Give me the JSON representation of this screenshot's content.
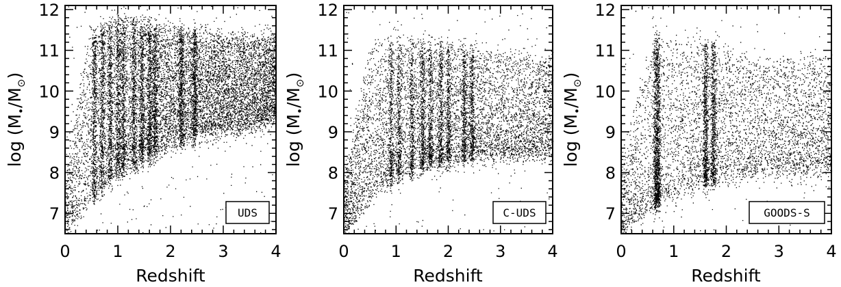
{
  "colors": {
    "points": "#000000",
    "background": "#ffffff",
    "axes": "#000000"
  },
  "chart_data": [
    {
      "type": "scatter",
      "legend": "UDS",
      "legend_placement": "bottom-right",
      "xlabel": "Redshift",
      "ylabel_prefix": "log (M",
      "ylabel_sub_1": "•",
      "ylabel_mid": "/M",
      "ylabel_sub_2": "⊙",
      "ylabel_suffix": ")",
      "xlim": [
        0,
        4
      ],
      "ylim": [
        6.5,
        12.1
      ],
      "xticks": [
        "0",
        "1",
        "2",
        "3",
        "4"
      ],
      "yticks": [
        "7",
        "8",
        "9",
        "10",
        "11",
        "12"
      ],
      "grid": false,
      "density": "very high",
      "point_count_estimate": 14000,
      "lower_envelope": [
        [
          0,
          6.5
        ],
        [
          0.4,
          7.2
        ],
        [
          0.8,
          7.8
        ],
        [
          1.2,
          8.1
        ],
        [
          1.6,
          8.4
        ],
        [
          2.0,
          8.7
        ],
        [
          2.5,
          8.9
        ],
        [
          3.0,
          9.0
        ],
        [
          4.0,
          9.3
        ]
      ],
      "upper_envelope": [
        [
          0,
          7.8
        ],
        [
          0.4,
          11.3
        ],
        [
          1.0,
          11.8
        ],
        [
          2.0,
          11.5
        ],
        [
          3.0,
          11.4
        ],
        [
          4.0,
          11.2
        ]
      ],
      "dense_stripes_z": [
        0.55,
        0.7,
        0.85,
        1.0,
        1.1,
        1.3,
        1.45,
        1.6,
        1.7,
        2.2,
        2.45
      ]
    },
    {
      "type": "scatter",
      "legend": "C-UDS",
      "legend_placement": "bottom-right",
      "xlabel": "Redshift",
      "ylabel_prefix": "log (M",
      "ylabel_sub_1": "•",
      "ylabel_mid": "/M",
      "ylabel_sub_2": "⊙",
      "ylabel_suffix": ")",
      "xlim": [
        0,
        4
      ],
      "ylim": [
        6.5,
        12.1
      ],
      "xticks": [
        "0",
        "1",
        "2",
        "3",
        "4"
      ],
      "yticks": [
        "7",
        "8",
        "9",
        "10",
        "11",
        "12"
      ],
      "grid": false,
      "density": "high",
      "point_count_estimate": 9000,
      "lower_envelope": [
        [
          0,
          6.5
        ],
        [
          0.4,
          7.3
        ],
        [
          0.8,
          7.8
        ],
        [
          1.2,
          8.0
        ],
        [
          1.6,
          8.2
        ],
        [
          2.0,
          8.3
        ],
        [
          2.5,
          8.4
        ],
        [
          3.0,
          8.4
        ],
        [
          4.0,
          8.5
        ]
      ],
      "upper_envelope": [
        [
          0,
          7.8
        ],
        [
          0.5,
          11.2
        ],
        [
          1.0,
          11.2
        ],
        [
          2.0,
          11.1
        ],
        [
          3.0,
          10.9
        ],
        [
          4.0,
          10.8
        ]
      ],
      "dense_stripes_z": [
        0.9,
        1.05,
        1.3,
        1.5,
        1.65,
        1.85,
        2.0,
        2.3,
        2.45
      ]
    },
    {
      "type": "scatter",
      "legend": "GOODS-S",
      "legend_placement": "bottom-right",
      "xlabel": "Redshift",
      "ylabel_prefix": "log (M",
      "ylabel_sub_1": "•",
      "ylabel_mid": "/M",
      "ylabel_sub_2": "⊙",
      "ylabel_suffix": ")",
      "xlim": [
        0,
        4
      ],
      "ylim": [
        6.5,
        12.1
      ],
      "xticks": [
        "0",
        "1",
        "2",
        "3",
        "4"
      ],
      "yticks": [
        "7",
        "8",
        "9",
        "10",
        "11",
        "12"
      ],
      "grid": false,
      "density": "medium",
      "point_count_estimate": 7000,
      "lower_envelope": [
        [
          0,
          6.5
        ],
        [
          0.4,
          7.0
        ],
        [
          0.8,
          7.4
        ],
        [
          1.2,
          7.6
        ],
        [
          1.6,
          7.8
        ],
        [
          2.0,
          7.9
        ],
        [
          2.5,
          8.0
        ],
        [
          3.0,
          8.0
        ],
        [
          4.0,
          8.1
        ]
      ],
      "upper_envelope": [
        [
          0,
          8.3
        ],
        [
          0.6,
          11.3
        ],
        [
          1.0,
          11.3
        ],
        [
          2.0,
          11.0
        ],
        [
          3.0,
          10.8
        ],
        [
          4.0,
          10.8
        ]
      ],
      "dense_stripes_z": [
        0.65,
        0.7,
        1.6,
        1.75
      ]
    }
  ]
}
